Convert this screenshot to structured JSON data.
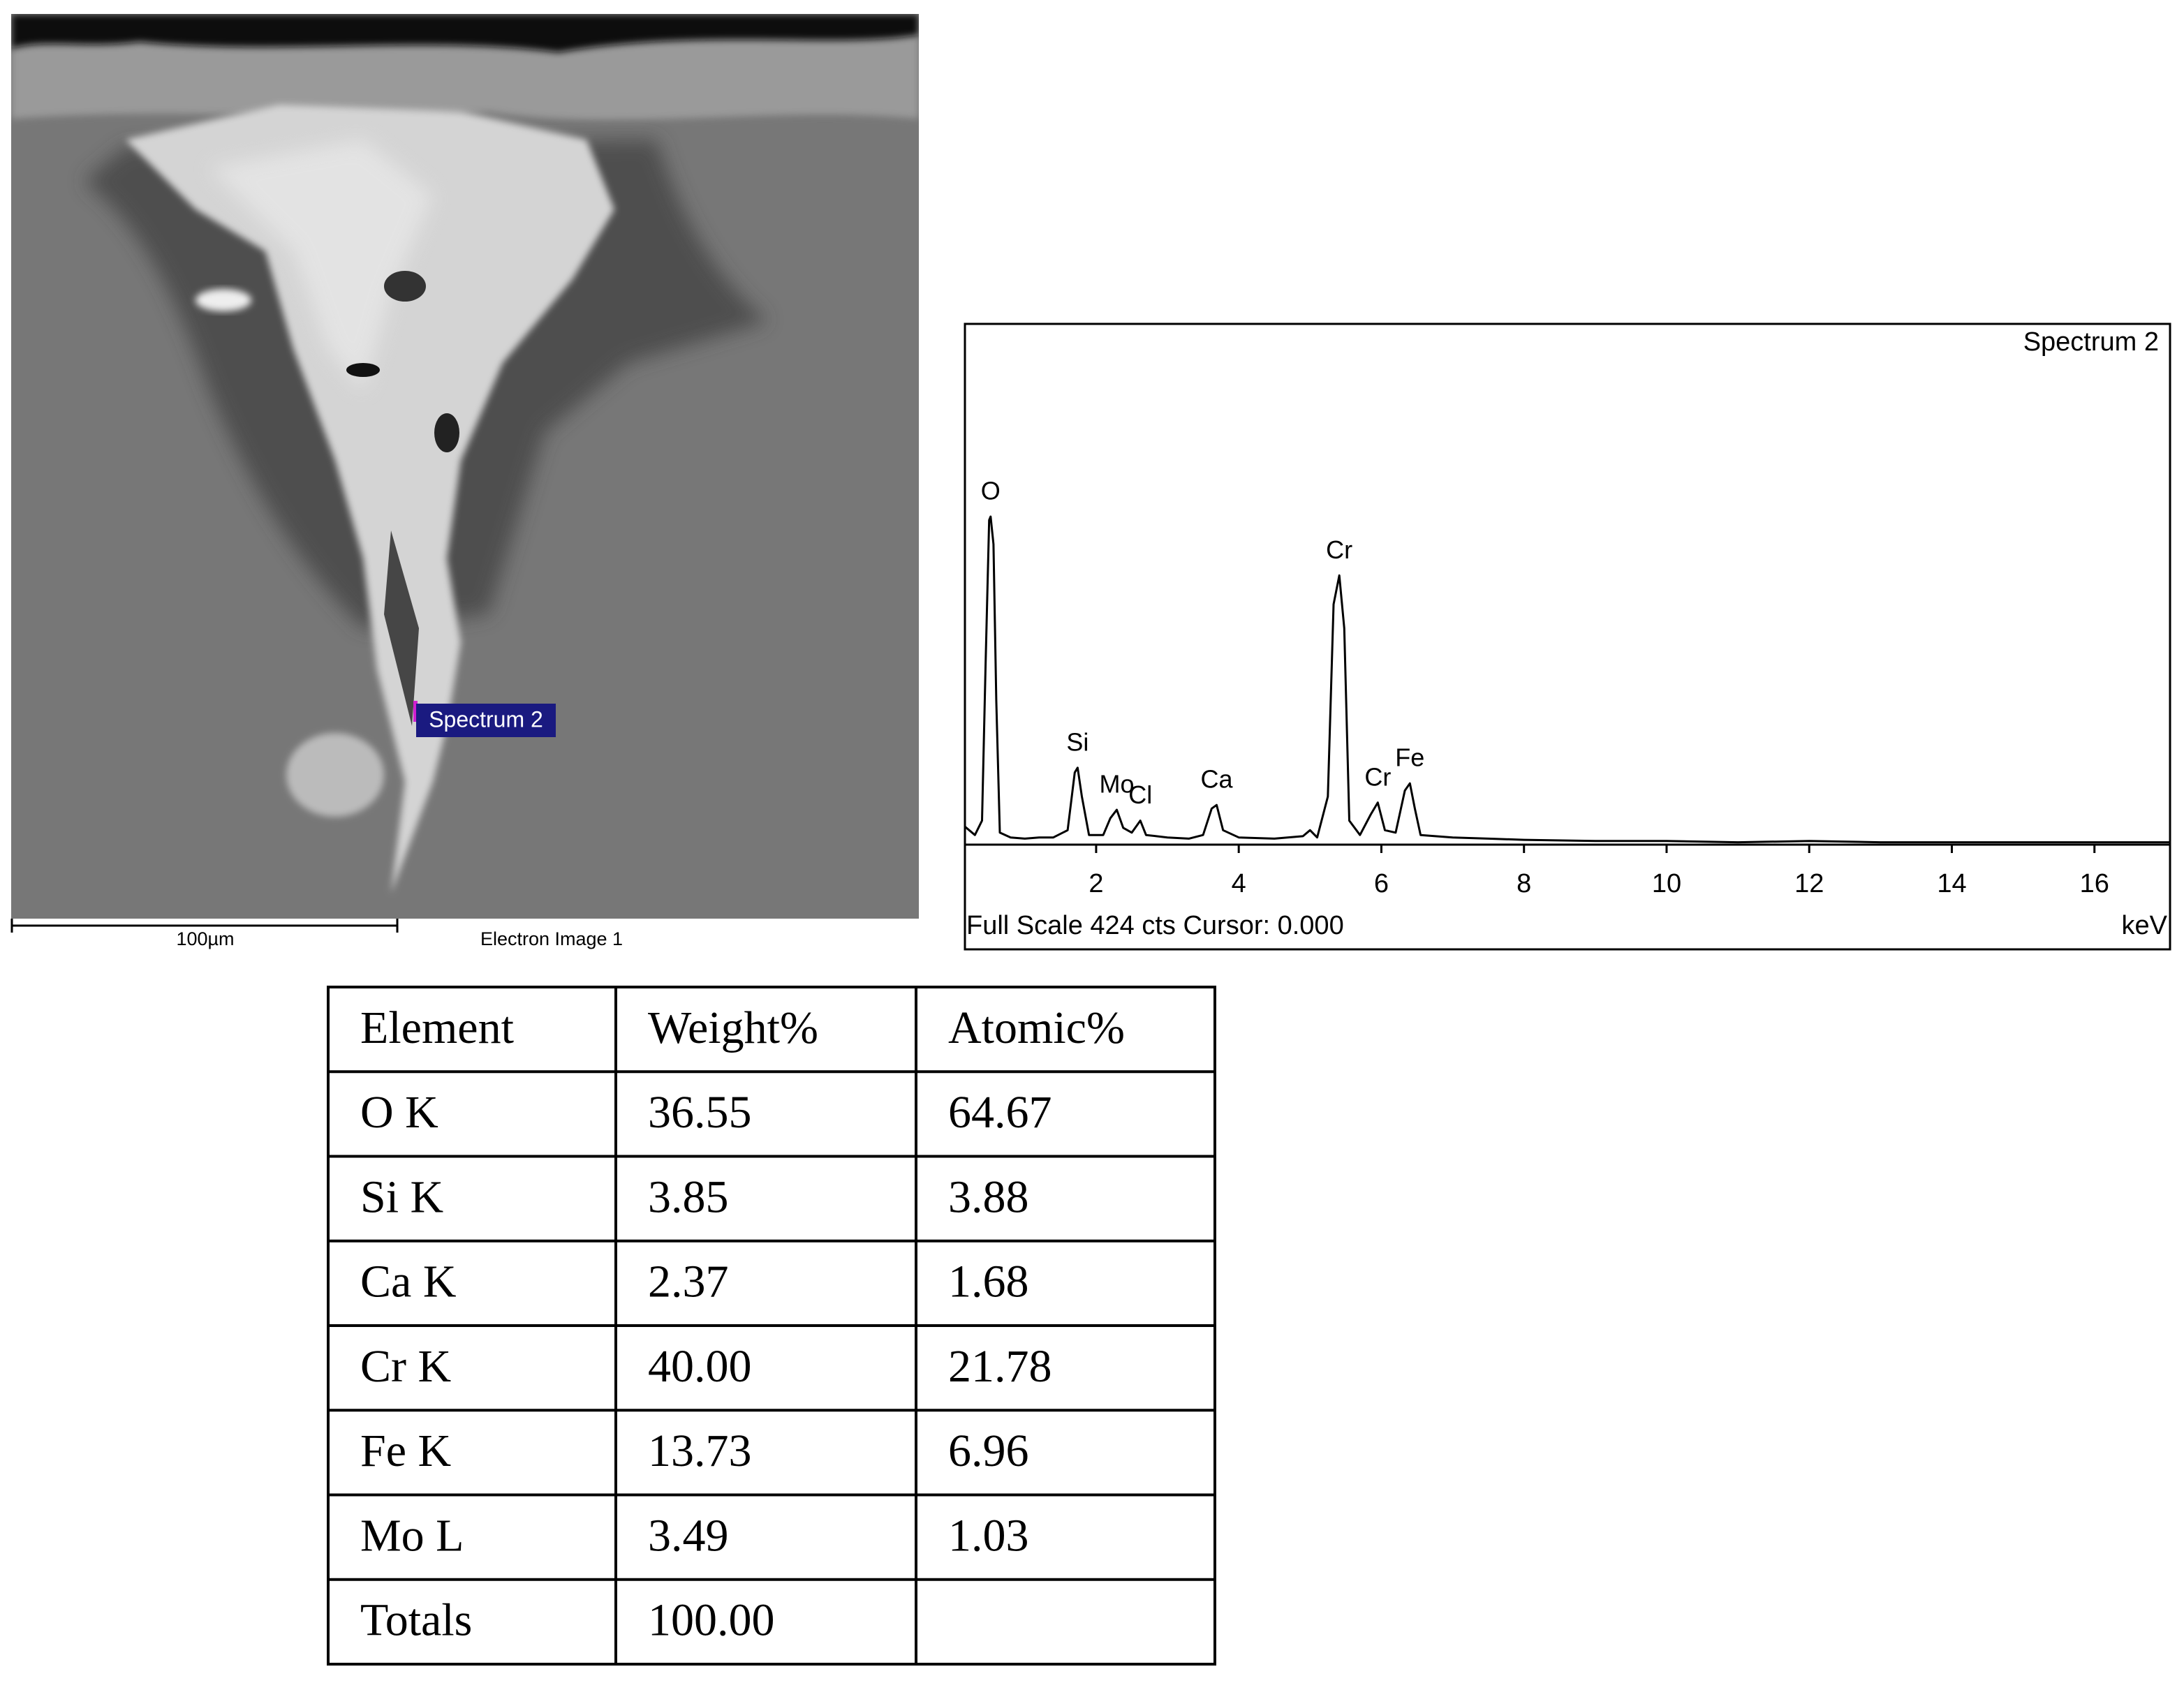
{
  "sem_image": {
    "marker_label": "Spectrum 2",
    "scale_label": "100µm",
    "caption": "Electron Image 1"
  },
  "chart_data": {
    "type": "line",
    "title": "Spectrum 2",
    "footer": "Full Scale 424 cts Cursor: 0.000",
    "xlabel": "keV",
    "color": "#000000",
    "xlim": [
      0.16,
      17.06
    ],
    "ylim": [
      0,
      424
    ],
    "xticks": [
      2,
      4,
      6,
      8,
      10,
      12,
      14,
      16
    ],
    "x": [
      0.16,
      0.3,
      0.4,
      0.45,
      0.5,
      0.52,
      0.56,
      0.6,
      0.65,
      0.8,
      1.0,
      1.2,
      1.4,
      1.6,
      1.7,
      1.74,
      1.8,
      1.9,
      2.1,
      2.2,
      2.29,
      2.38,
      2.5,
      2.62,
      2.7,
      3.0,
      3.3,
      3.5,
      3.62,
      3.69,
      3.78,
      4.0,
      4.5,
      4.9,
      5.0,
      5.1,
      5.25,
      5.33,
      5.41,
      5.48,
      5.55,
      5.7,
      5.85,
      5.95,
      6.05,
      6.2,
      6.33,
      6.4,
      6.47,
      6.55,
      7.0,
      7.5,
      8.0,
      9.0,
      10.0,
      11.0,
      12.0,
      13.0,
      14.0,
      15.0,
      16.0,
      17.06
    ],
    "values": [
      15,
      8,
      20,
      150,
      270,
      273,
      250,
      120,
      10,
      6,
      5,
      6,
      6,
      12,
      60,
      64,
      40,
      8,
      8,
      22,
      29,
      14,
      10,
      20,
      8,
      6,
      5,
      8,
      30,
      33,
      12,
      6,
      5,
      7,
      12,
      6,
      40,
      200,
      224,
      180,
      20,
      8,
      25,
      35,
      12,
      10,
      45,
      51,
      30,
      8,
      6,
      5,
      4,
      3,
      3,
      2,
      3,
      2,
      2,
      2,
      2,
      2
    ],
    "annotations": [
      {
        "text": "O",
        "x": 0.52,
        "y": 273
      },
      {
        "text": "Si",
        "x": 1.74,
        "y": 64
      },
      {
        "text": "Mo",
        "x": 2.29,
        "y": 29
      },
      {
        "text": "Cl",
        "x": 2.62,
        "y": 20
      },
      {
        "text": "Ca",
        "x": 3.69,
        "y": 33
      },
      {
        "text": "Cr",
        "x": 5.41,
        "y": 224
      },
      {
        "text": "Cr",
        "x": 5.95,
        "y": 35
      },
      {
        "text": "Fe",
        "x": 6.4,
        "y": 51
      }
    ]
  },
  "table": {
    "header": [
      "Element",
      "Weight%",
      "Atomic%"
    ],
    "rows": [
      [
        "O K",
        "36.55",
        "64.67"
      ],
      [
        "Si K",
        "3.85",
        "3.88"
      ],
      [
        "Ca K",
        "2.37",
        "1.68"
      ],
      [
        "Cr K",
        "40.00",
        "21.78"
      ],
      [
        "Fe K",
        "13.73",
        "6.96"
      ],
      [
        "Mo L",
        "3.49",
        "1.03"
      ],
      [
        "Totals",
        "100.00"
      ]
    ]
  }
}
